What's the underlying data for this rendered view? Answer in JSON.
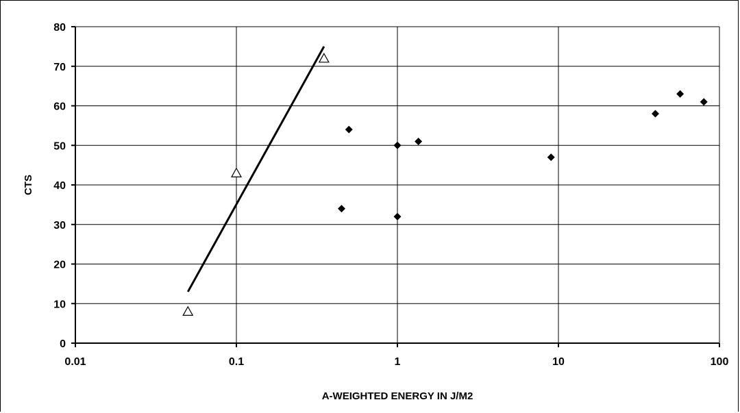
{
  "chart_data": {
    "type": "scatter",
    "title": "",
    "xlabel": "A-WEIGHTED ENERGY IN J/M2",
    "ylabel": "CTS",
    "x_scale": "log",
    "xlim": [
      0.01,
      100
    ],
    "ylim": [
      0,
      80
    ],
    "x_ticks": [
      0.01,
      0.1,
      1,
      10,
      100
    ],
    "x_tick_labels": [
      "0.01",
      "0.1",
      "1",
      "10",
      "100"
    ],
    "y_ticks": [
      0,
      10,
      20,
      30,
      40,
      50,
      60,
      70,
      80
    ],
    "y_tick_labels": [
      "0",
      "10",
      "20",
      "30",
      "40",
      "50",
      "60",
      "70",
      "80"
    ],
    "grid": true,
    "legend": "none",
    "series": [
      {
        "marker": "open-triangle",
        "color": "#000000",
        "x": [
          0.05,
          0.1,
          0.35
        ],
        "y": [
          8,
          43,
          72
        ]
      },
      {
        "marker": "filled-diamond",
        "color": "#000000",
        "x": [
          0.45,
          0.5,
          1,
          1,
          1.35,
          9,
          40,
          57,
          80
        ],
        "y": [
          34,
          54,
          50,
          32,
          51,
          47,
          58,
          63,
          61
        ]
      },
      {
        "type": "line",
        "color": "#000000",
        "x": [
          0.05,
          0.35
        ],
        "y": [
          13,
          75
        ]
      }
    ]
  }
}
